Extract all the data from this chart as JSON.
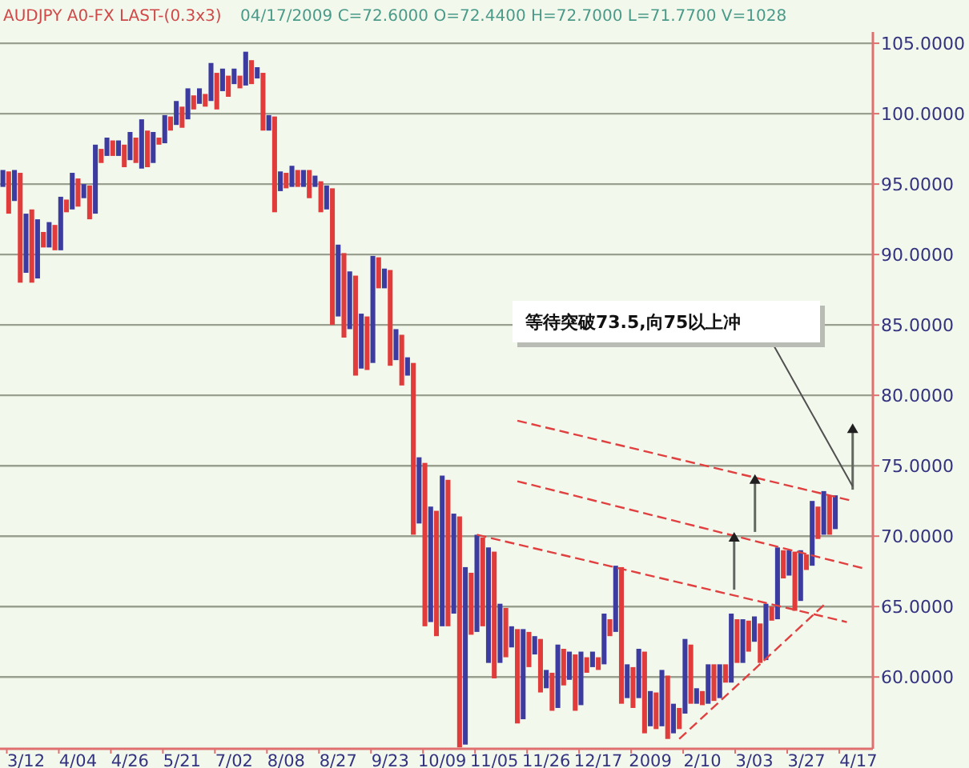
{
  "chart_data": {
    "type": "bar",
    "title": "AUDJPY A0-FX LAST-(0.3x3)",
    "subtitle": "04/17/2009   C=72.6000   O=72.4400   H=72.7000   L=71.7700   V=1028",
    "annotations": [
      "等待突破73.5,向75以上冲"
    ],
    "categories": [
      null,
      null,
      null,
      null,
      "3/12",
      null,
      null,
      null,
      null,
      null,
      null,
      null,
      null,
      "4/04",
      null,
      null,
      null,
      null,
      null,
      null,
      null,
      null,
      "4/26",
      null,
      null,
      null,
      null,
      null,
      null,
      null,
      null,
      "5/21",
      null,
      null,
      null,
      null,
      null,
      null,
      null,
      null,
      "7/02",
      null,
      null,
      null,
      null,
      null,
      null,
      null,
      null,
      "8/08",
      null,
      null,
      null,
      null,
      null,
      null,
      null,
      null,
      "8/27",
      null,
      null,
      null,
      null,
      null,
      null,
      null,
      null,
      "9/23",
      null,
      null,
      null,
      null,
      null,
      null,
      null,
      null,
      "10/09",
      null,
      null,
      null,
      null,
      null,
      null,
      null,
      null,
      "11/05",
      null,
      null,
      null,
      null,
      null,
      null,
      null,
      null,
      "11/26",
      null,
      null,
      null,
      null,
      null,
      null,
      null,
      null,
      "12/17",
      null,
      null,
      null,
      null,
      null,
      null,
      null,
      null,
      "2009",
      null,
      null,
      null,
      null,
      null,
      null,
      null,
      null,
      "2/10",
      null,
      null,
      null,
      null,
      null,
      null,
      null,
      null,
      "3/03",
      null,
      null,
      null,
      null,
      null,
      null,
      null,
      null,
      "3/27",
      null,
      null,
      null,
      null,
      null,
      null,
      null,
      null,
      "4/17",
      null,
      null
    ],
    "series": [
      {
        "values": [
          1.2,
          3.0,
          2.2,
          7.8,
          4.2,
          5.2,
          4.2,
          1.1,
          1.8,
          1.8,
          3.8,
          0.9,
          2.6,
          2.0,
          1.0,
          2.4,
          4.9,
          1.0,
          1.3,
          1.1,
          1.1,
          1.6,
          2.0,
          1.8,
          3.5,
          2.6,
          2.2,
          0.5,
          2.0,
          1.0,
          1.7,
          1.5,
          2.2,
          1.0,
          1.1,
          0.9,
          2.7,
          2.6,
          1.6,
          1.5,
          1.1,
          0.9,
          2.4,
          1.7,
          0.8,
          4.1,
          1.1,
          6.8,
          1.4,
          1.1,
          1.5,
          1.2,
          1.2,
          2.0,
          0.8,
          2.2,
          1.7,
          9.7,
          5.1,
          6.0,
          4.1,
          7.1,
          3.9,
          3.8,
          7.6,
          2.2,
          1.4,
          6.8,
          2.2,
          3.6,
          1.3,
          12.2,
          4.7,
          11.6,
          8.2,
          8.9,
          10.7,
          10.4,
          7.1,
          16.4,
          12.6,
          4.4,
          6.9,
          6.3,
          8.2,
          9.0,
          4.2,
          3.5,
          1.5,
          6.7,
          6.4,
          2.5,
          1.3,
          3.8,
          1.3,
          2.7,
          4.5,
          2.6,
          2.0,
          4.0,
          3.8,
          1.1,
          1.1,
          0.9,
          3.6,
          1.2,
          4.7,
          9.7,
          2.4,
          2.9,
          3.5,
          5.8,
          2.5,
          2.6,
          4.0,
          4.5,
          2.1,
          1.5,
          5.3,
          4.2,
          1.1,
          1.0,
          2.8,
          2.6,
          2.4,
          1.3,
          4.9,
          3.1,
          3.1,
          2.2,
          1.8,
          2.8,
          4.0,
          1.0,
          5.1,
          2.0,
          1.8,
          4.2,
          3.6,
          1.1,
          4.6,
          2.3,
          3.1,
          2.8,
          2.4,
          null,
          null,
          null,
          null,
          null,
          null
        ],
        "base": [
          94.8,
          92.9,
          93.8,
          88.0,
          88.7,
          88.0,
          88.3,
          90.5,
          90.5,
          90.3,
          90.3,
          93.0,
          93.2,
          93.4,
          94.0,
          92.5,
          92.9,
          96.5,
          97.0,
          97.0,
          97.0,
          96.2,
          96.7,
          96.5,
          96.1,
          96.2,
          96.5,
          97.8,
          97.9,
          98.8,
          99.2,
          99.0,
          99.6,
          100.3,
          100.7,
          100.5,
          100.9,
          100.3,
          101.6,
          101.2,
          102.1,
          101.8,
          102.0,
          102.1,
          102.5,
          98.8,
          98.8,
          93.0,
          94.5,
          94.7,
          94.8,
          94.8,
          94.8,
          94.0,
          94.8,
          93.0,
          93.2,
          85.0,
          85.6,
          84.1,
          84.7,
          81.4,
          81.9,
          81.8,
          82.3,
          87.6,
          87.6,
          82.1,
          82.5,
          80.7,
          81.4,
          70.1,
          70.9,
          63.6,
          63.9,
          62.9,
          63.6,
          63.6,
          64.5,
          55.0,
          55.2,
          63.0,
          63.2,
          63.6,
          61.0,
          59.9,
          61.0,
          61.4,
          62.1,
          56.7,
          57.0,
          60.7,
          61.6,
          58.9,
          59.2,
          57.6,
          57.8,
          59.4,
          59.8,
          57.6,
          58.0,
          60.3,
          60.7,
          60.5,
          60.9,
          62.9,
          63.2,
          58.1,
          58.5,
          57.8,
          58.5,
          56.0,
          56.5,
          56.3,
          56.5,
          55.6,
          56.0,
          56.3,
          57.4,
          58.1,
          58.1,
          58.0,
          58.1,
          58.3,
          58.5,
          59.6,
          59.6,
          61.0,
          61.0,
          61.8,
          62.5,
          61.0,
          61.2,
          64.0,
          64.1,
          67.0,
          67.2,
          64.7,
          65.4,
          67.6,
          67.9,
          69.8,
          70.1,
          70.1,
          70.5,
          null,
          null,
          null,
          null,
          null,
          null
        ],
        "colors": [
          "#3c3ca0",
          "#e03c3c",
          "#3c3ca0",
          "#e03c3c",
          "#3c3ca0",
          "#e03c3c",
          "#3c3ca0",
          "#e03c3c",
          "#3c3ca0",
          "#e03c3c",
          "#3c3ca0",
          "#e03c3c",
          "#3c3ca0",
          "#e03c3c",
          "#3c3ca0",
          "#e03c3c",
          "#3c3ca0",
          "#e03c3c",
          "#3c3ca0",
          "#e03c3c",
          "#3c3ca0",
          "#e03c3c",
          "#3c3ca0",
          "#e03c3c",
          "#3c3ca0",
          "#e03c3c",
          "#3c3ca0",
          "#e03c3c",
          "#3c3ca0",
          "#e03c3c",
          "#3c3ca0",
          "#e03c3c",
          "#3c3ca0",
          "#e03c3c",
          "#3c3ca0",
          "#e03c3c",
          "#3c3ca0",
          "#e03c3c",
          "#3c3ca0",
          "#e03c3c",
          "#3c3ca0",
          "#e03c3c",
          "#3c3ca0",
          "#e03c3c",
          "#3c3ca0",
          "#e03c3c",
          "#3c3ca0",
          "#e03c3c",
          "#3c3ca0",
          "#e03c3c",
          "#3c3ca0",
          "#e03c3c",
          "#3c3ca0",
          "#e03c3c",
          "#3c3ca0",
          "#e03c3c",
          "#3c3ca0",
          "#e03c3c",
          "#3c3ca0",
          "#e03c3c",
          "#3c3ca0",
          "#e03c3c",
          "#3c3ca0",
          "#e03c3c",
          "#3c3ca0",
          "#e03c3c",
          "#3c3ca0",
          "#e03c3c",
          "#3c3ca0",
          "#e03c3c",
          "#3c3ca0",
          "#e03c3c",
          "#3c3ca0",
          "#e03c3c",
          "#3c3ca0",
          "#e03c3c",
          "#3c3ca0",
          "#e03c3c",
          "#3c3ca0",
          "#e03c3c",
          "#3c3ca0",
          "#e03c3c",
          "#3c3ca0",
          "#e03c3c",
          "#3c3ca0",
          "#e03c3c",
          "#3c3ca0",
          "#e03c3c",
          "#3c3ca0",
          "#e03c3c",
          "#3c3ca0",
          "#e03c3c",
          "#3c3ca0",
          "#e03c3c",
          "#3c3ca0",
          "#e03c3c",
          "#3c3ca0",
          "#e03c3c",
          "#3c3ca0",
          "#e03c3c",
          "#3c3ca0",
          "#e03c3c",
          "#3c3ca0",
          "#e03c3c",
          "#3c3ca0",
          "#e03c3c",
          "#3c3ca0",
          "#e03c3c",
          "#3c3ca0",
          "#e03c3c",
          "#3c3ca0",
          "#e03c3c",
          "#3c3ca0",
          "#e03c3c",
          "#3c3ca0",
          "#e03c3c",
          "#3c3ca0",
          "#e03c3c",
          "#3c3ca0",
          "#e03c3c",
          "#3c3ca0",
          "#e03c3c",
          "#3c3ca0",
          "#e03c3c",
          "#3c3ca0",
          "#e03c3c",
          "#3c3ca0",
          "#e03c3c",
          "#3c3ca0",
          "#e03c3c",
          "#3c3ca0",
          "#e03c3c",
          "#3c3ca0",
          "#e03c3c",
          "#3c3ca0",
          "#e03c3c",
          "#3c3ca0",
          "#e03c3c",
          "#3c3ca0",
          "#e03c3c",
          "#3c3ca0",
          "#e03c3c",
          "#3c3ca0",
          "#e03c3c",
          "#3c3ca0",
          null,
          null,
          null,
          null,
          null,
          null
        ]
      },
      {
        "type": "line",
        "color": "#e04040",
        "line_style": "dashed",
        "values": [
          null,
          null,
          null,
          null,
          null,
          null,
          null,
          null,
          null,
          null,
          null,
          null,
          null,
          null,
          null,
          null,
          null,
          null,
          null,
          null,
          null,
          null,
          null,
          null,
          null,
          null,
          null,
          null,
          null,
          null,
          null,
          null,
          null,
          null,
          null,
          null,
          null,
          null,
          null,
          null,
          null,
          null,
          null,
          null,
          null,
          null,
          null,
          null,
          null,
          null,
          null,
          null,
          null,
          null,
          null,
          null,
          null,
          null,
          null,
          null,
          null,
          null,
          null,
          null,
          null,
          null,
          null,
          null,
          null,
          null,
          null,
          null,
          null,
          null,
          null,
          null,
          null,
          null,
          null,
          null,
          null,
          null,
          null,
          null,
          null,
          null,
          null,
          null,
          null,
          78.2,
          null,
          null,
          null,
          null,
          null,
          null,
          null,
          null,
          null,
          null,
          null,
          null,
          null,
          null,
          null,
          null,
          null,
          null,
          null,
          null,
          null,
          null,
          null,
          null,
          null,
          null,
          null,
          null,
          null,
          null,
          null,
          null,
          null,
          null,
          null,
          null,
          null,
          null,
          null,
          null,
          null,
          null,
          null,
          null,
          null,
          null,
          null,
          null,
          null,
          null,
          null,
          null,
          null,
          null,
          null,
          null,
          null,
          72.5,
          null,
          null,
          null
        ]
      },
      {
        "type": "line",
        "color": "#e04040",
        "line_style": "dashed",
        "values": [
          null,
          null,
          null,
          null,
          null,
          null,
          null,
          null,
          null,
          null,
          null,
          null,
          null,
          null,
          null,
          null,
          null,
          null,
          null,
          null,
          null,
          null,
          null,
          null,
          null,
          null,
          null,
          null,
          null,
          null,
          null,
          null,
          null,
          null,
          null,
          null,
          null,
          null,
          null,
          null,
          null,
          null,
          null,
          null,
          null,
          null,
          null,
          null,
          null,
          null,
          null,
          null,
          null,
          null,
          null,
          null,
          null,
          null,
          null,
          null,
          null,
          null,
          null,
          null,
          null,
          null,
          null,
          null,
          null,
          null,
          null,
          null,
          null,
          null,
          null,
          null,
          null,
          null,
          null,
          null,
          null,
          null,
          null,
          null,
          null,
          null,
          null,
          null,
          null,
          73.9,
          null,
          null,
          null,
          null,
          null,
          null,
          null,
          null,
          null,
          null,
          null,
          null,
          null,
          null,
          null,
          null,
          null,
          null,
          null,
          null,
          null,
          null,
          null,
          null,
          null,
          null,
          null,
          null,
          null,
          null,
          null,
          null,
          null,
          null,
          null,
          null,
          null,
          null,
          null,
          null,
          null,
          null,
          null,
          null,
          null,
          null,
          null,
          null,
          null,
          null,
          null,
          null,
          null,
          null,
          null,
          null,
          null,
          null,
          null,
          67.7,
          null
        ]
      },
      {
        "type": "line",
        "color": "#e04040",
        "line_style": "dashed",
        "values": [
          null,
          null,
          null,
          null,
          null,
          null,
          null,
          null,
          null,
          null,
          null,
          null,
          null,
          null,
          null,
          null,
          null,
          null,
          null,
          null,
          null,
          null,
          null,
          null,
          null,
          null,
          null,
          null,
          null,
          null,
          null,
          null,
          null,
          null,
          null,
          null,
          null,
          null,
          null,
          null,
          null,
          null,
          null,
          null,
          null,
          null,
          null,
          null,
          null,
          null,
          null,
          null,
          null,
          null,
          null,
          null,
          null,
          null,
          null,
          null,
          null,
          null,
          null,
          null,
          null,
          null,
          null,
          null,
          null,
          null,
          null,
          null,
          null,
          null,
          null,
          null,
          null,
          null,
          null,
          null,
          null,
          null,
          70.1,
          null,
          null,
          null,
          null,
          null,
          null,
          null,
          null,
          null,
          null,
          null,
          null,
          null,
          null,
          null,
          null,
          null,
          null,
          null,
          null,
          null,
          null,
          null,
          null,
          null,
          null,
          null,
          null,
          null,
          null,
          null,
          null,
          null,
          null,
          null,
          null,
          null,
          null,
          null,
          null,
          null,
          null,
          null,
          null,
          null,
          null,
          null,
          null,
          null,
          null,
          null,
          null,
          null,
          null,
          null,
          null,
          null,
          null,
          null,
          null,
          null,
          null,
          null,
          63.9,
          null,
          null,
          null,
          null
        ]
      },
      {
        "type": "line",
        "color": "#e04040",
        "line_style": "dashed",
        "values": [
          null,
          null,
          null,
          null,
          null,
          null,
          null,
          null,
          null,
          null,
          null,
          null,
          null,
          null,
          null,
          null,
          null,
          null,
          null,
          null,
          null,
          null,
          null,
          null,
          null,
          null,
          null,
          null,
          null,
          null,
          null,
          null,
          null,
          null,
          null,
          null,
          null,
          null,
          null,
          null,
          null,
          null,
          null,
          null,
          null,
          null,
          null,
          null,
          null,
          null,
          null,
          null,
          null,
          null,
          null,
          null,
          null,
          null,
          null,
          null,
          null,
          null,
          null,
          null,
          null,
          null,
          null,
          null,
          null,
          null,
          null,
          null,
          null,
          null,
          null,
          null,
          null,
          null,
          null,
          null,
          null,
          null,
          null,
          null,
          null,
          null,
          null,
          null,
          null,
          null,
          null,
          null,
          null,
          null,
          null,
          null,
          null,
          null,
          null,
          null,
          null,
          null,
          null,
          null,
          null,
          null,
          null,
          null,
          null,
          null,
          null,
          null,
          null,
          null,
          null,
          null,
          null,
          55.6,
          null,
          null,
          null,
          null,
          null,
          null,
          null,
          null,
          null,
          null,
          null,
          null,
          null,
          null,
          null,
          null,
          null,
          null,
          null,
          null,
          null,
          null,
          null,
          null,
          65.1,
          null,
          null,
          null,
          null,
          null,
          null,
          null,
          null
        ]
      }
    ],
    "ylim": [
      54.9,
      105.8
    ],
    "yticks": [
      {
        "value": 60,
        "label": "60.0000"
      },
      {
        "value": 65,
        "label": "65.0000"
      },
      {
        "value": 70,
        "label": "70.0000"
      },
      {
        "value": 75,
        "label": "75.0000"
      },
      {
        "value": 80,
        "label": "80.0000"
      },
      {
        "value": 85,
        "label": "85.0000"
      },
      {
        "value": 90,
        "label": "90.0000"
      },
      {
        "value": 95,
        "label": "95.0000"
      },
      {
        "value": 100,
        "label": "100.0000"
      },
      {
        "value": 105,
        "label": "105.0000"
      }
    ],
    "grid": "y"
  }
}
